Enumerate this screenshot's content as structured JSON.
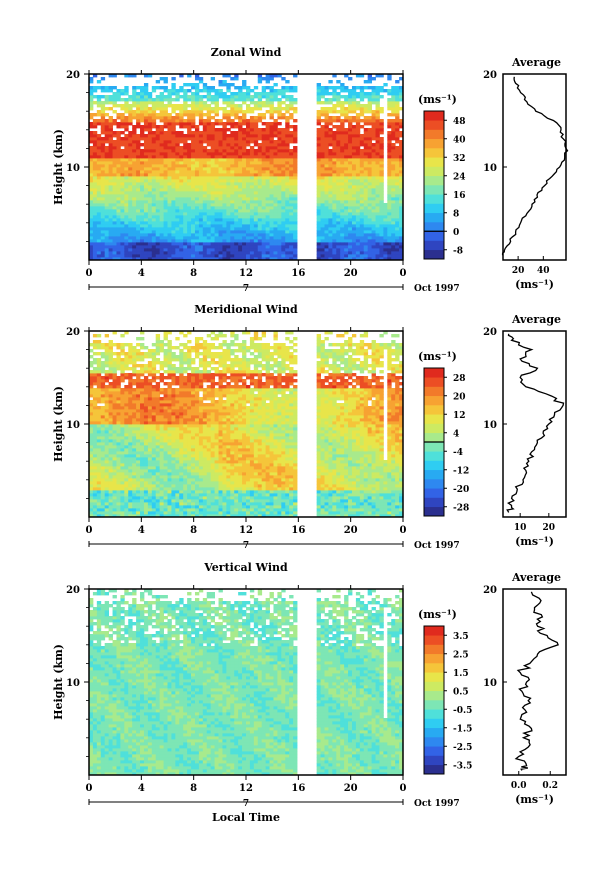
{
  "chart_data": [
    {
      "type": "heatmap",
      "title": "Zonal Wind",
      "ylabel": "Height (km)",
      "ylim": [
        0,
        20
      ],
      "yticks": [
        "10",
        "20"
      ],
      "xticks": [
        "0",
        "4",
        "8",
        "12",
        "16",
        "20",
        "0"
      ],
      "xlim": [
        0,
        24
      ],
      "date_marker": "7",
      "date_label": "Oct 1997",
      "colorbar": {
        "unit": "(ms⁻¹)",
        "levels": [
          "48",
          "40",
          "32",
          "24",
          "16",
          "8",
          "0",
          "-8"
        ],
        "ticks_top_to_bottom": [
          "48",
          "40",
          "32",
          "24",
          "16",
          "8",
          "0",
          "-8"
        ],
        "range": [
          -12,
          52
        ]
      },
      "profile": {
        "title": "Average",
        "xlabel": "(ms⁻¹)",
        "xticks": [
          "20",
          "40"
        ],
        "xlim": [
          8,
          58
        ],
        "heights": [
          0.5,
          1,
          2,
          3,
          4,
          5,
          6,
          7,
          8,
          9,
          10,
          11,
          12,
          13,
          14,
          15,
          16,
          17,
          18,
          19,
          19.7
        ],
        "values": [
          8,
          9,
          14,
          18,
          22,
          27,
          31,
          35,
          41,
          47,
          53,
          57,
          58,
          56,
          54,
          48,
          34,
          27,
          22,
          18,
          17
        ]
      }
    },
    {
      "type": "heatmap",
      "title": "Meridional Wind",
      "ylabel": "Height (km)",
      "ylim": [
        0,
        20
      ],
      "yticks": [
        "10",
        "20"
      ],
      "xticks": [
        "0",
        "4",
        "8",
        "12",
        "16",
        "20",
        "0"
      ],
      "xlim": [
        0,
        24
      ],
      "date_marker": "7",
      "date_label": "Oct 1997",
      "colorbar": {
        "unit": "(ms⁻¹)",
        "levels": [
          "28",
          "20",
          "12",
          "4",
          "-4",
          "-12",
          "-20",
          "-28"
        ],
        "ticks_top_to_bottom": [
          "28",
          "20",
          "12",
          "4",
          "-4",
          "-12",
          "-20",
          "-28"
        ],
        "range": [
          -32,
          32
        ]
      },
      "profile": {
        "title": "Average",
        "xlabel": "(ms⁻¹)",
        "xticks": [
          "10",
          "20"
        ],
        "xlim": [
          4,
          26
        ],
        "heights": [
          0.5,
          1,
          2,
          3,
          4,
          5,
          6,
          7,
          8,
          9,
          10,
          11,
          12,
          13,
          14,
          15,
          16,
          17,
          18,
          19,
          19.7
        ],
        "values": [
          6,
          7,
          7,
          9,
          11,
          12,
          13,
          14,
          16,
          18,
          20,
          22,
          25,
          21,
          12,
          10,
          16,
          10,
          14,
          7,
          6
        ]
      }
    },
    {
      "type": "heatmap",
      "title": "Vertical Wind",
      "xlabel": "Local Time",
      "ylabel": "Height (km)",
      "ylim": [
        0,
        20
      ],
      "yticks": [
        "10",
        "20"
      ],
      "xticks": [
        "0",
        "4",
        "8",
        "12",
        "16",
        "20",
        "0"
      ],
      "xlim": [
        0,
        24
      ],
      "date_marker": "7",
      "date_label": "Oct 1997",
      "colorbar": {
        "unit": "(ms⁻¹)",
        "levels": [
          "3.5",
          "2.5",
          "1.5",
          "0.5",
          "-0.5",
          "-1.5",
          "-2.5",
          "-3.5"
        ],
        "ticks_top_to_bottom": [
          "3.5",
          "2.5",
          "1.5",
          "0.5",
          "-0.5",
          "-1.5",
          "-2.5",
          "-3.5"
        ],
        "range": [
          -4,
          4
        ]
      },
      "profile": {
        "title": "Average",
        "xlabel": "(ms⁻¹)",
        "xticks": [
          "0.0",
          "0.2"
        ],
        "xlim": [
          -0.1,
          0.3
        ],
        "heights": [
          0.5,
          1,
          2,
          3,
          4,
          5,
          6,
          7,
          8,
          9,
          10,
          11,
          12,
          13,
          14,
          15,
          16,
          17,
          18,
          19,
          19.7
        ],
        "values": [
          0.02,
          0.05,
          0.0,
          0.06,
          0.03,
          0.08,
          0.01,
          0.04,
          0.06,
          0.02,
          0.05,
          0.01,
          0.07,
          0.12,
          0.25,
          0.18,
          0.12,
          0.15,
          0.1,
          0.13,
          0.08
        ]
      }
    }
  ]
}
